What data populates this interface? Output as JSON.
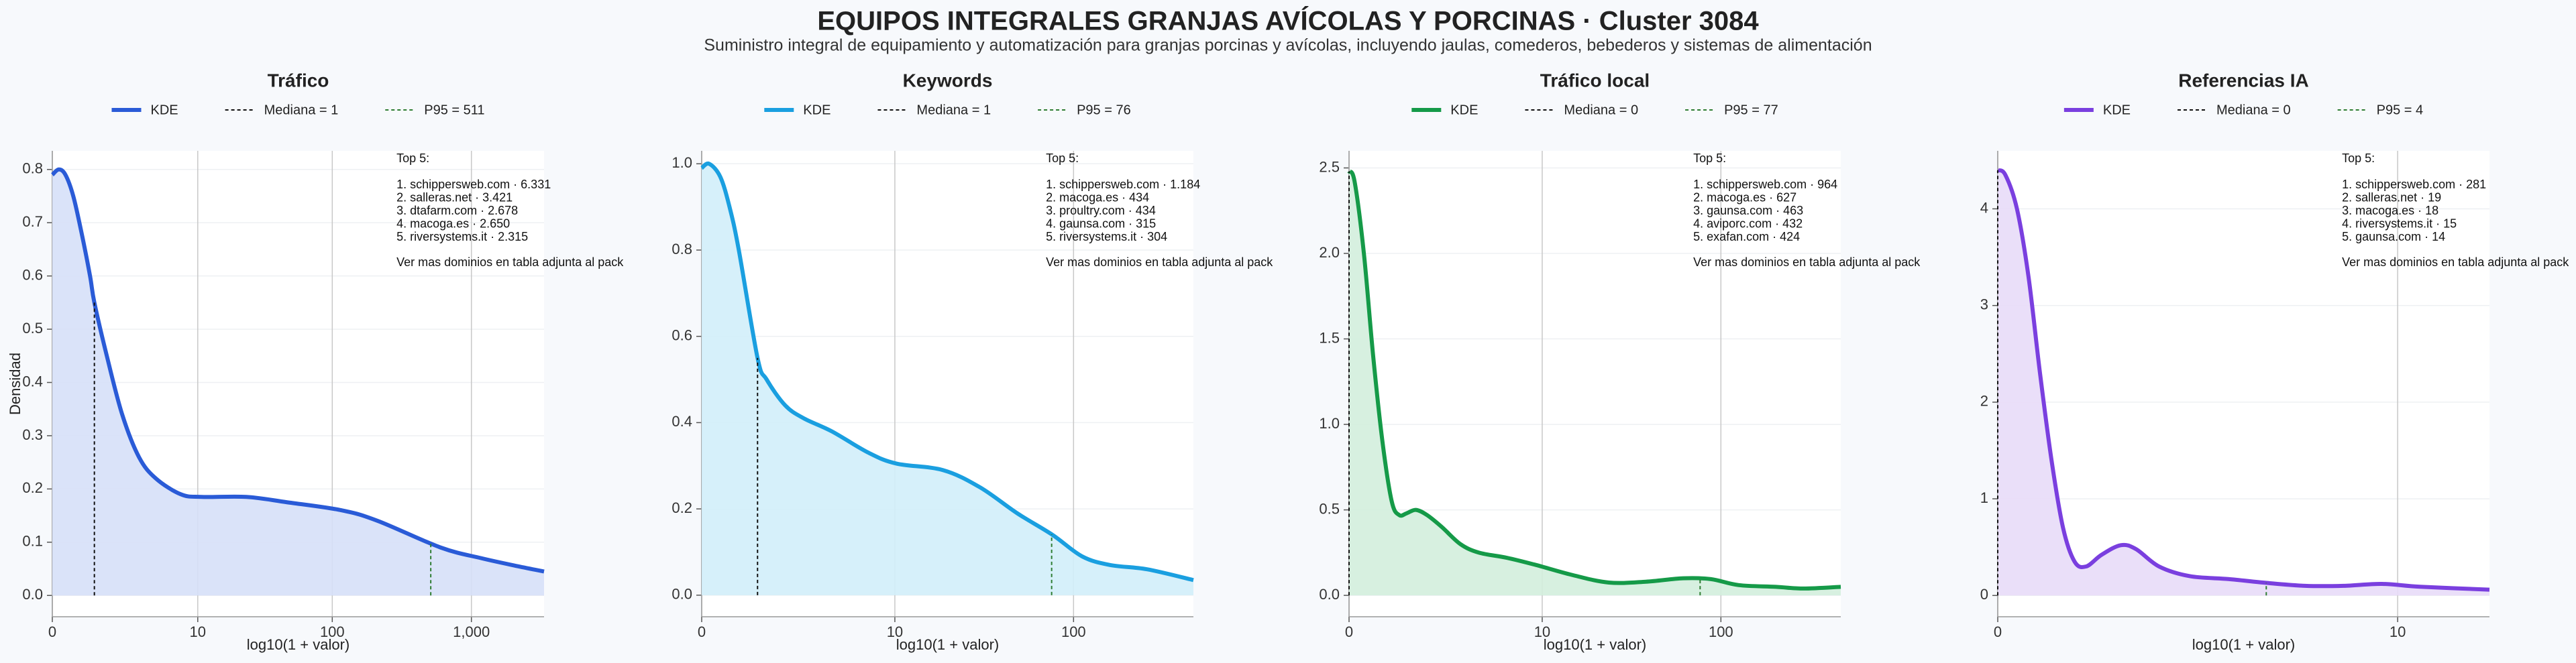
{
  "title": "EQUIPOS INTEGRALES GRANJAS AVÍCOLAS Y PORCINAS · Cluster 3084",
  "subtitle": "Suministro integral de equipamiento y automatización para granjas porcinas y avícolas, incluyendo jaulas, comederos, bebederos y sistemas de alimentación",
  "chart_data": [
    {
      "type": "line",
      "title": "Tráfico",
      "xlabel": "log10(1 + valor)",
      "ylabel": "Densidad",
      "grid": true,
      "fill": "#d6e0f8",
      "x": [
        0,
        0.047,
        0.094,
        0.15,
        0.21,
        0.27,
        0.301,
        0.39,
        0.5,
        0.62,
        0.74,
        0.92,
        1.07,
        1.39,
        1.68,
        2.07,
        2.33,
        2.78,
        3.07,
        3.33,
        3.52
      ],
      "series": [
        {
          "name": "KDE",
          "color": "#2a5bd7",
          "values": [
            0.79,
            0.8,
            0.79,
            0.75,
            0.68,
            0.6,
            0.55,
            0.45,
            0.34,
            0.26,
            0.22,
            0.19,
            0.185,
            0.185,
            0.175,
            0.16,
            0.14,
            0.09,
            0.07,
            0.055,
            0.045
          ]
        }
      ],
      "reference_lines": [
        {
          "label": "Mediana = 1",
          "x": 0.301,
          "color": "#111111"
        },
        {
          "label": "P95 = 511",
          "x": 2.709,
          "color": "#2e7d32"
        }
      ],
      "xlim": [
        0,
        3.52
      ],
      "ylim": [
        -0.04,
        0.835
      ],
      "xticks": [
        0,
        {
          "value": 1.041,
          "label": "10"
        },
        {
          "value": 2.004,
          "label": "100"
        },
        {
          "value": 3.0,
          "label": "1,000"
        }
      ],
      "yticks": [
        {
          "value": 0,
          "label": "0.0"
        },
        0.1,
        0.2,
        0.3,
        0.4,
        0.5,
        0.6,
        0.7,
        0.8
      ],
      "annotation": {
        "title": "Top 5:",
        "items": [
          "1. schippersweb.com · 6.331",
          "2. salleras.net · 3.421",
          "3. dtafarm.com · 2.678",
          "4. macoga.es · 2.650",
          "5. riversystems.it · 2.315"
        ],
        "note": "Ver mas dominios en tabla adjunta al pack"
      }
    },
    {
      "type": "line",
      "title": "Keywords",
      "xlabel": "log10(1 + valor)",
      "grid": true,
      "fill": "#d2eefa",
      "x": [
        0,
        0.04,
        0.1,
        0.15,
        0.2,
        0.301,
        0.35,
        0.45,
        0.55,
        0.7,
        0.9,
        1.05,
        1.3,
        1.5,
        1.7,
        1.89,
        2.05,
        2.2,
        2.4,
        2.65
      ],
      "series": [
        {
          "name": "KDE",
          "color": "#1a9fe0",
          "values": [
            0.99,
            1.0,
            0.97,
            0.9,
            0.8,
            0.55,
            0.5,
            0.44,
            0.41,
            0.38,
            0.33,
            0.305,
            0.29,
            0.25,
            0.19,
            0.14,
            0.09,
            0.07,
            0.06,
            0.035
          ]
        }
      ],
      "reference_lines": [
        {
          "label": "Mediana = 1",
          "x": 0.301,
          "color": "#111111"
        },
        {
          "label": "P95 = 76",
          "x": 1.886,
          "color": "#2e7d32"
        }
      ],
      "xlim": [
        0,
        2.65
      ],
      "ylim": [
        -0.05,
        1.03
      ],
      "xticks": [
        0,
        {
          "value": 1.041,
          "label": "10"
        },
        {
          "value": 2.004,
          "label": "100"
        }
      ],
      "yticks": [
        {
          "value": 0,
          "label": "0.0"
        },
        0.2,
        0.4,
        0.6,
        0.8,
        {
          "value": 1,
          "label": "1.0"
        }
      ],
      "annotation": {
        "title": "Top 5:",
        "items": [
          "1. schippersweb.com · 1.184",
          "2. macoga.es · 434",
          "3. proultry.com · 434",
          "4. gaunsa.com · 315",
          "5. riversystems.it · 304"
        ],
        "note": "Ver mas dominios en tabla adjunta al pack"
      }
    },
    {
      "type": "line",
      "title": "Tráfico local",
      "xlabel": "log10(1 + valor)",
      "grid": true,
      "fill": "#d3eedd",
      "x": [
        0,
        0.03,
        0.08,
        0.13,
        0.18,
        0.23,
        0.27,
        0.31,
        0.36,
        0.42,
        0.5,
        0.6,
        0.7,
        0.85,
        1.0,
        1.2,
        1.4,
        1.6,
        1.8,
        1.95,
        2.1,
        2.3,
        2.45,
        2.65
      ],
      "series": [
        {
          "name": "KDE",
          "color": "#159a48",
          "values": [
            2.48,
            2.42,
            2.0,
            1.4,
            0.9,
            0.55,
            0.47,
            0.48,
            0.5,
            0.47,
            0.4,
            0.3,
            0.25,
            0.22,
            0.18,
            0.12,
            0.075,
            0.08,
            0.1,
            0.095,
            0.06,
            0.05,
            0.04,
            0.05
          ]
        }
      ],
      "reference_lines": [
        {
          "label": "Mediana = 0",
          "x": 0,
          "color": "#111111"
        },
        {
          "label": "P95 = 77",
          "x": 1.892,
          "color": "#2e7d32"
        }
      ],
      "xlim": [
        0,
        2.65
      ],
      "ylim": [
        -0.125,
        2.6
      ],
      "xticks": [
        0,
        {
          "value": 1.041,
          "label": "10"
        },
        {
          "value": 2.004,
          "label": "100"
        }
      ],
      "yticks": [
        {
          "value": 0,
          "label": "0.0"
        },
        0.5,
        {
          "value": 1,
          "label": "1.0"
        },
        1.5,
        {
          "value": 2,
          "label": "2.0"
        },
        2.5
      ],
      "annotation": {
        "title": "Top 5:",
        "items": [
          "1. schippersweb.com · 964",
          "2. macoga.es · 627",
          "3. gaunsa.com · 463",
          "4. aviporc.com · 432",
          "5. exafan.com · 424"
        ],
        "note": "Ver mas dominios en tabla adjunta al pack"
      }
    },
    {
      "type": "line",
      "title": "Referencias IA",
      "xlabel": "log10(1 + valor)",
      "grid": true,
      "fill": "#e8dcf8",
      "x": [
        0,
        0.02,
        0.05,
        0.08,
        0.11,
        0.14,
        0.17,
        0.2,
        0.23,
        0.27,
        0.32,
        0.36,
        0.42,
        0.5,
        0.6,
        0.7,
        0.8,
        0.9,
        1.0,
        1.1,
        1.28
      ],
      "series": [
        {
          "name": "KDE",
          "color": "#7a3fdf",
          "values": [
            4.4,
            4.35,
            4.0,
            3.3,
            2.3,
            1.4,
            0.7,
            0.35,
            0.3,
            0.42,
            0.52,
            0.48,
            0.3,
            0.2,
            0.17,
            0.13,
            0.1,
            0.1,
            0.12,
            0.09,
            0.06
          ]
        }
      ],
      "reference_lines": [
        {
          "label": "Mediana = 0",
          "x": 0,
          "color": "#111111"
        },
        {
          "label": "P95 = 4",
          "x": 0.699,
          "color": "#2e7d32"
        }
      ],
      "xlim": [
        0,
        1.28
      ],
      "ylim": [
        -0.22,
        4.6
      ],
      "xticks": [
        0,
        {
          "value": 1.041,
          "label": "10"
        }
      ],
      "yticks": [
        0,
        1,
        2,
        3,
        4
      ],
      "annotation": {
        "title": "Top 5:",
        "items": [
          "1. schippersweb.com · 281",
          "2. salleras.net · 19",
          "3. macoga.es · 18",
          "4. riversystems.it · 15",
          "5. gaunsa.com · 14"
        ],
        "note": "Ver mas dominios en tabla adjunta al pack"
      }
    }
  ]
}
